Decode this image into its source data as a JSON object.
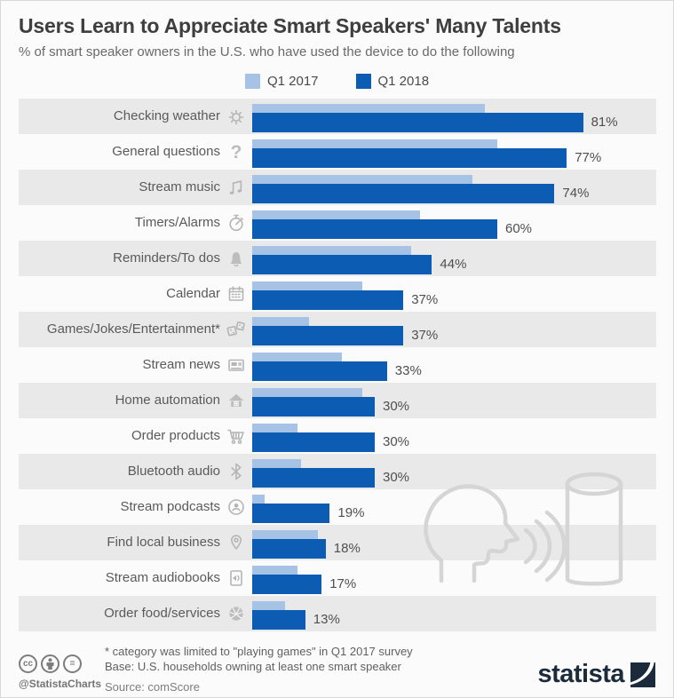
{
  "header": {
    "title": "Users Learn to Appreciate Smart Speakers' Many Talents",
    "subtitle": "% of smart speaker owners in the U.S. who have used the device to do the following"
  },
  "colors": {
    "q1_2017": "#a6c3e6",
    "q1_2018": "#0d5cb4",
    "row_stripe": "#e9e9e9",
    "watermark": "#d5d5d5",
    "brand_navy": "#1b2b3c"
  },
  "chart_data": {
    "type": "bar",
    "orientation": "horizontal",
    "unit": "%",
    "xlim": [
      0,
      100
    ],
    "grid": false,
    "legend_position": "top",
    "categories": [
      "Checking weather",
      "General questions",
      "Stream music",
      "Timers/Alarms",
      "Reminders/To dos",
      "Calendar",
      "Games/Jokes/Entertainment*",
      "Stream news",
      "Home automation",
      "Order products",
      "Bluetooth audio",
      "Stream podcasts",
      "Find local business",
      "Stream audiobooks",
      "Order food/services"
    ],
    "icons": [
      "weather-sun-icon",
      "question-mark-icon",
      "music-notes-icon",
      "stopwatch-icon",
      "bell-icon",
      "calendar-icon",
      "dice-icon",
      "news-icon",
      "house-icon",
      "cart-icon",
      "bluetooth-icon",
      "podcast-icon",
      "map-pin-icon",
      "audiobook-icon",
      "pizza-icon"
    ],
    "series": [
      {
        "name": "Q1 2017",
        "color": "#a6c3e6",
        "values": [
          57,
          60,
          54,
          41,
          39,
          27,
          14,
          22,
          27,
          11,
          12,
          3,
          16,
          11,
          8
        ]
      },
      {
        "name": "Q1 2018",
        "color": "#0d5cb4",
        "values": [
          81,
          77,
          74,
          60,
          44,
          37,
          37,
          33,
          30,
          30,
          30,
          19,
          18,
          17,
          13
        ]
      }
    ],
    "value_labels": [
      "81%",
      "77%",
      "74%",
      "60%",
      "44%",
      "37%",
      "37%",
      "33%",
      "30%",
      "30%",
      "30%",
      "19%",
      "18%",
      "17%",
      "13%"
    ]
  },
  "footer": {
    "footnote_line1": "* category was limited to \"playing games\" in Q1 2017 survey",
    "footnote_line2": "Base: U.S. households owning at least one smart speaker",
    "source": "Source: comScore",
    "handle": "@StatistaCharts",
    "cc_icons": [
      "cc-icon",
      "attribution-person-icon",
      "no-derivatives-icon"
    ],
    "brand": "statista"
  }
}
